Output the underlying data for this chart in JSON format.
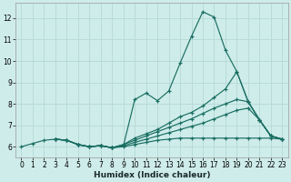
{
  "xlabel": "Humidex (Indice chaleur)",
  "xlim": [
    -0.5,
    23.5
  ],
  "ylim": [
    5.5,
    12.7
  ],
  "yticks": [
    6,
    7,
    8,
    9,
    10,
    11,
    12
  ],
  "xticks": [
    0,
    1,
    2,
    3,
    4,
    5,
    6,
    7,
    8,
    9,
    10,
    11,
    12,
    13,
    14,
    15,
    16,
    17,
    18,
    19,
    20,
    21,
    22,
    23
  ],
  "bg_color": "#ceecea",
  "grid_color": "#b8dbd9",
  "line_color": "#1a6e62",
  "lines": [
    {
      "x": [
        0,
        1,
        2,
        3,
        4,
        5,
        6,
        7,
        8,
        9,
        10,
        11,
        12,
        13,
        14,
        15,
        16,
        17,
        18,
        19,
        20,
        21,
        22,
        23
      ],
      "y": [
        6.0,
        6.15,
        6.3,
        6.35,
        6.3,
        6.1,
        6.0,
        6.05,
        5.95,
        6.05,
        8.2,
        8.5,
        8.15,
        8.6,
        9.9,
        11.15,
        12.3,
        12.05,
        10.5,
        9.5,
        8.1,
        7.25,
        6.5,
        6.35
      ]
    },
    {
      "x": [
        3,
        4,
        5,
        6,
        7,
        8,
        9,
        10,
        11,
        12,
        13,
        14,
        15,
        16,
        17,
        18,
        19,
        20,
        21,
        22,
        23
      ],
      "y": [
        6.35,
        6.3,
        6.1,
        6.0,
        6.05,
        5.95,
        6.1,
        6.4,
        6.6,
        6.8,
        7.1,
        7.4,
        7.6,
        7.9,
        8.3,
        8.7,
        9.5,
        8.1,
        7.25,
        6.5,
        6.35
      ]
    },
    {
      "x": [
        3,
        4,
        5,
        6,
        7,
        8,
        9,
        10,
        11,
        12,
        13,
        14,
        15,
        16,
        17,
        18,
        19,
        20,
        21,
        22,
        23
      ],
      "y": [
        6.35,
        6.3,
        6.1,
        6.0,
        6.05,
        5.95,
        6.1,
        6.3,
        6.5,
        6.7,
        6.9,
        7.1,
        7.3,
        7.55,
        7.8,
        8.0,
        8.2,
        8.1,
        7.25,
        6.5,
        6.35
      ]
    },
    {
      "x": [
        3,
        4,
        5,
        6,
        7,
        8,
        9,
        10,
        11,
        12,
        13,
        14,
        15,
        16,
        17,
        18,
        19,
        20,
        21,
        22,
        23
      ],
      "y": [
        6.35,
        6.3,
        6.1,
        6.0,
        6.05,
        5.95,
        6.05,
        6.2,
        6.35,
        6.5,
        6.65,
        6.8,
        6.95,
        7.1,
        7.3,
        7.5,
        7.7,
        7.8,
        7.25,
        6.5,
        6.35
      ]
    },
    {
      "x": [
        3,
        4,
        5,
        6,
        7,
        8,
        9,
        10,
        11,
        12,
        13,
        14,
        15,
        16,
        17,
        18,
        19,
        20,
        21,
        22,
        23
      ],
      "y": [
        6.35,
        6.3,
        6.1,
        6.0,
        6.05,
        5.95,
        6.0,
        6.1,
        6.2,
        6.3,
        6.35,
        6.4,
        6.4,
        6.4,
        6.4,
        6.4,
        6.4,
        6.4,
        6.4,
        6.4,
        6.35
      ]
    }
  ]
}
